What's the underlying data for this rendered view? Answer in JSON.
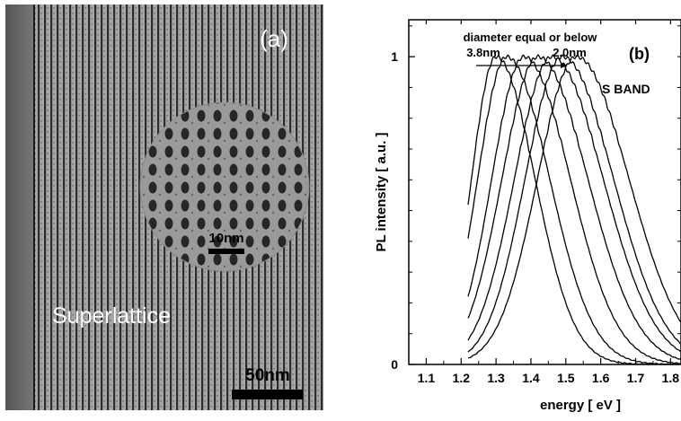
{
  "panel_a": {
    "label": "(a)",
    "inset_scale_label": "10nm",
    "structure_label": "Superlattice",
    "main_scale_label": "50nm"
  },
  "panel_b": {
    "label": "(b)",
    "band_label": "S BAND",
    "annotation_title": "diameter equal or below",
    "annotation_left": "3.8nm",
    "annotation_right": "2.0nm"
  },
  "chart_data": {
    "type": "line",
    "title": "",
    "xlabel": "energy [ eV ]",
    "ylabel": "PL intensity [ a.u. ]",
    "xlim": [
      1.05,
      1.83
    ],
    "ylim": [
      0,
      1.12
    ],
    "xticks": [
      1.1,
      1.2,
      1.3,
      1.4,
      1.5,
      1.6,
      1.7,
      1.8
    ],
    "xtick_labels": [
      "1.1",
      "1.2",
      "1.3",
      "1.4",
      "1.5",
      "1.6",
      "1.7",
      "1.8"
    ],
    "yticks": [
      0,
      1
    ],
    "ytick_labels": [
      "0",
      "1"
    ],
    "grid": false,
    "x_start": 1.22,
    "series": [
      {
        "peak": 1.3,
        "values_at_x_start": 0.52
      },
      {
        "peak": 1.33,
        "values_at_x_start": 0.41
      },
      {
        "peak": 1.38,
        "values_at_x_start": 0.22
      },
      {
        "peak": 1.42,
        "values_at_x_start": 0.15
      },
      {
        "peak": 1.46,
        "values_at_x_start": 0.08
      },
      {
        "peak": 1.49,
        "values_at_x_start": 0.04
      },
      {
        "peak": 1.53,
        "values_at_x_start": 0.02
      }
    ]
  }
}
